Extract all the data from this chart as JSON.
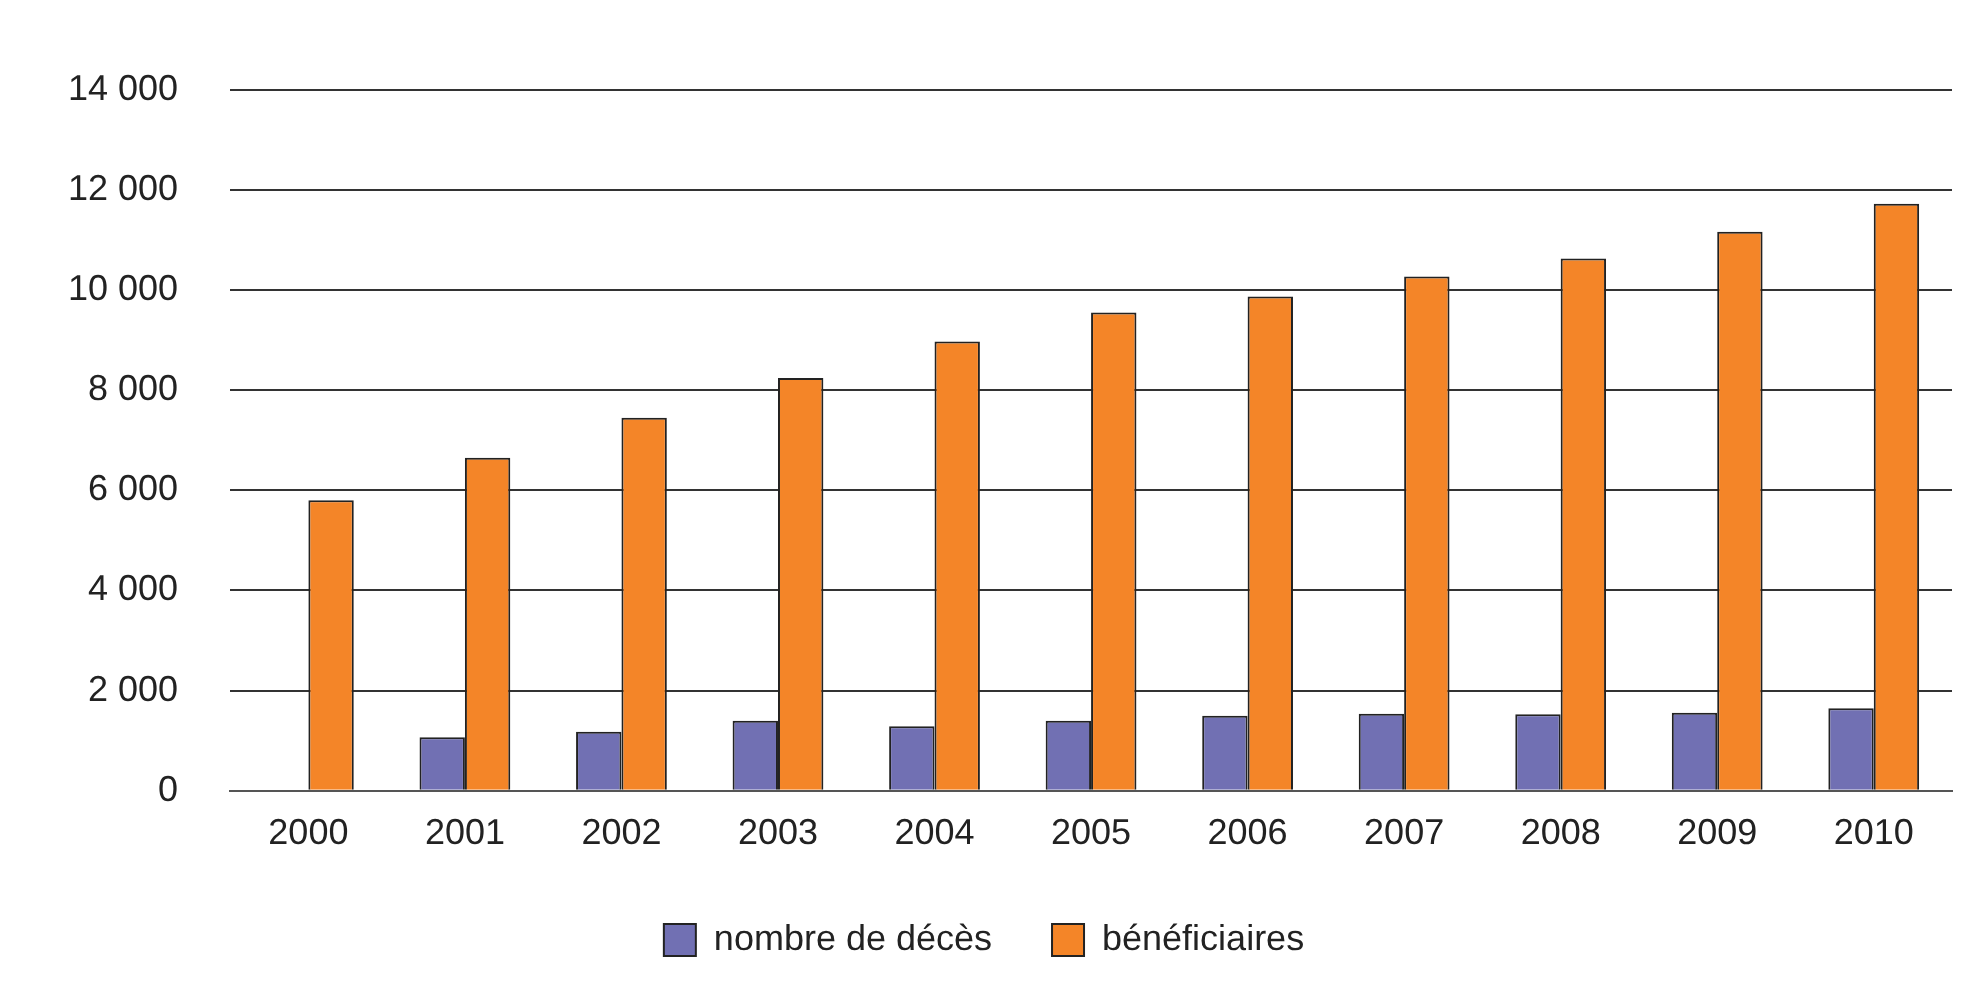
{
  "chart_data": {
    "type": "bar",
    "categories": [
      "2000",
      "2001",
      "2002",
      "2003",
      "2004",
      "2005",
      "2006",
      "2007",
      "2008",
      "2009",
      "2010"
    ],
    "series": [
      {
        "name": "nombre de décès",
        "color": "#7170b3",
        "values": [
          null,
          1070,
          1180,
          1400,
          1290,
          1400,
          1500,
          1540,
          1530,
          1560,
          1650
        ]
      },
      {
        "name": "bénéficiaires",
        "color": "#f48528",
        "values": [
          5800,
          6650,
          7450,
          8240,
          8970,
          9550,
          9870,
          10270,
          10630,
          11160,
          11720
        ]
      }
    ],
    "ylim": [
      0,
      14000
    ],
    "yticks": [
      {
        "value": 0,
        "label": "0"
      },
      {
        "value": 2000,
        "label": "2 000"
      },
      {
        "value": 4000,
        "label": "4 000"
      },
      {
        "value": 6000,
        "label": "6 000"
      },
      {
        "value": 8000,
        "label": "8 000"
      },
      {
        "value": 10000,
        "label": "10 000"
      },
      {
        "value": 12000,
        "label": "12 000"
      },
      {
        "value": 14000,
        "label": "14 000"
      }
    ],
    "grid": "y",
    "legend": "bottom"
  }
}
